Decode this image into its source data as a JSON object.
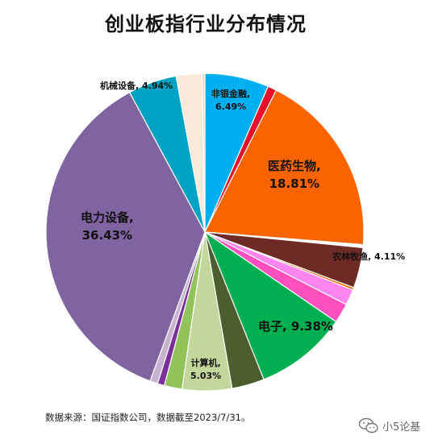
{
  "chart_data": {
    "type": "pie",
    "title": "创业板指行业分布情况",
    "slices": [
      {
        "label": "非银金融",
        "value": 6.49,
        "color": "#00b0f0"
      },
      {
        "label": "",
        "value": 0.9,
        "color": "#e8102a"
      },
      {
        "label": "医药生物",
        "value": 18.81,
        "color": "#fa6400"
      },
      {
        "label": "",
        "value": 0.3,
        "color": "#ffffff"
      },
      {
        "label": "农林牧渔",
        "value": 4.11,
        "color": "#6e2a24"
      },
      {
        "label": "",
        "value": 0.25,
        "color": "#ff6600"
      },
      {
        "label": "",
        "value": 1.6,
        "color": "#ff85f0"
      },
      {
        "label": "",
        "value": 2.0,
        "color": "#ff4fbf"
      },
      {
        "label": "电子",
        "value": 9.38,
        "color": "#00b050"
      },
      {
        "label": "",
        "value": 3.3,
        "color": "#4b5e2e"
      },
      {
        "label": "计算机",
        "value": 5.03,
        "color": "#c3d69b"
      },
      {
        "label": "",
        "value": 1.8,
        "color": "#92c25a"
      },
      {
        "label": "",
        "value": 0.7,
        "color": "#7b2f9a"
      },
      {
        "label": "",
        "value": 0.8,
        "color": "#c8b2d2"
      },
      {
        "label": "电力设备",
        "value": 36.43,
        "color": "#8064a2"
      },
      {
        "label": "机械设备",
        "value": 4.94,
        "color": "#00a3c4"
      },
      {
        "label": "",
        "value": 2.6,
        "color": "#fde9d9"
      },
      {
        "label": "",
        "value": 0.3,
        "color": "#f6d9c0"
      }
    ],
    "labels": [
      {
        "name": "非银金融,",
        "value": "6.49%"
      },
      {
        "name": "医药生物,",
        "value": "18.81%"
      },
      {
        "name": "农林牧渔, 4.11%",
        "value": ""
      },
      {
        "name": "电子, 9.38%",
        "value": ""
      },
      {
        "name": "计算机,",
        "value": "5.03%"
      },
      {
        "name": "电力设备,",
        "value": "36.43%"
      },
      {
        "name": "机械设备, 4.94%",
        "value": ""
      }
    ]
  },
  "source_note": "数据来源：国证指数公司，数据截至2023/7/31。",
  "watermark": {
    "text": "小5论基",
    "icon": "wechat-icon"
  }
}
